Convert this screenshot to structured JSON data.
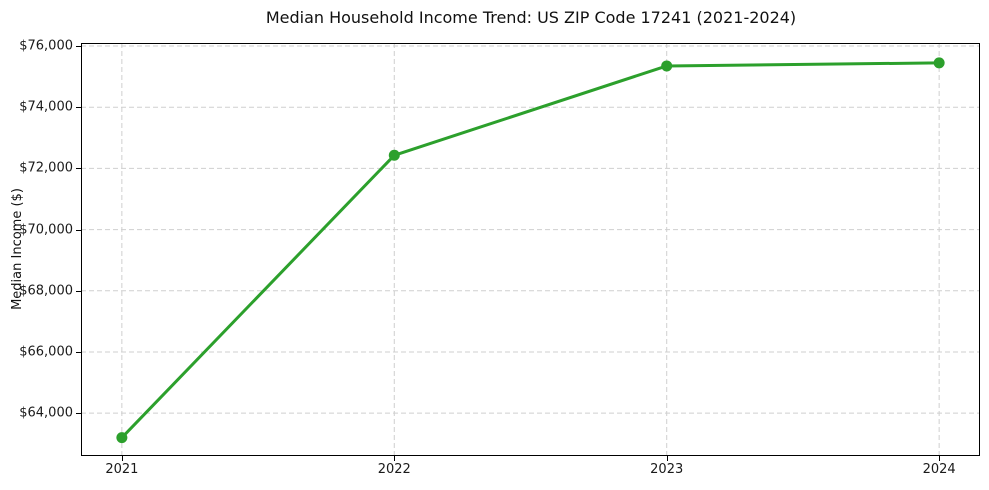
{
  "chart_data": {
    "type": "line",
    "title": "Median Household Income Trend: US ZIP Code 17241 (2021-2024)",
    "xlabel": "",
    "ylabel": "Median Income ($)",
    "x": [
      2021,
      2022,
      2023,
      2024
    ],
    "xtick_labels": [
      "2021",
      "2022",
      "2023",
      "2024"
    ],
    "yticks": [
      64000,
      66000,
      68000,
      70000,
      72000,
      74000,
      76000
    ],
    "ytick_labels": [
      "$64,000",
      "$66,000",
      "$68,000",
      "$70,000",
      "$72,000",
      "$74,000",
      "$76,000"
    ],
    "series": [
      {
        "name": "Median Household Income",
        "values": [
          63200,
          72430,
          75350,
          75450
        ]
      }
    ],
    "xlim": [
      2020.85,
      2024.15
    ],
    "ylim": [
      62600,
      76100
    ],
    "grid": true,
    "legend": "none",
    "colors": {
      "line": "#2ca02c",
      "marker": "#2ca02c",
      "grid": "#cfcfcf",
      "spine": "#000000",
      "text": "#111111"
    },
    "style": {
      "line_width": 3,
      "marker_radius": 5.5,
      "grid_dash": "5 3"
    }
  }
}
